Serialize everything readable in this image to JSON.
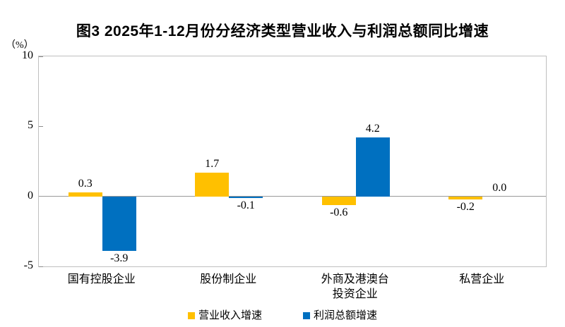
{
  "chart_data": {
    "type": "bar",
    "title": "图3  2025年1-12月份分经济类型营业收入与利润总额同比增速",
    "unit_label": "（%）",
    "categories": [
      "国有控股企业",
      "股份制企业",
      "外商及港澳台\n投资企业",
      "私营企业"
    ],
    "series": [
      {
        "name": "营业收入增速",
        "color": "#FFC000",
        "values": [
          0.3,
          1.7,
          -0.6,
          -0.2
        ]
      },
      {
        "name": "利润总额增速",
        "color": "#0070C0",
        "values": [
          -3.9,
          -0.1,
          4.2,
          0.0
        ]
      }
    ],
    "ylim": [
      -5,
      10
    ],
    "yticks": [
      10,
      5,
      0,
      -5
    ],
    "value_label_decimals": 1,
    "legend_position": "bottom",
    "grid": "zero-line-only",
    "colors": {
      "axis_border": "#bfbfbf",
      "zero_line": "#999999",
      "tick_mark": "#8c8c8c",
      "text": "#000000",
      "background": "#ffffff"
    }
  }
}
